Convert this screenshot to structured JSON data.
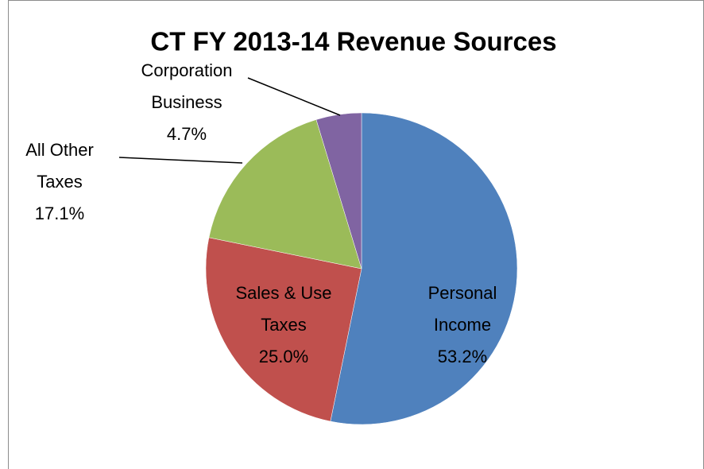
{
  "chart_data": {
    "type": "pie",
    "title": "CT FY 2013-14 Revenue Sources",
    "categories": [
      [
        "Personal",
        "Income"
      ],
      [
        "Sales & Use",
        "Taxes"
      ],
      [
        "All Other",
        "Taxes"
      ],
      [
        "Corporation",
        "Business"
      ]
    ],
    "values": [
      53.2,
      25.0,
      17.1,
      4.7
    ],
    "value_labels": [
      "53.2%",
      "25.0%",
      "17.1%",
      "4.7%"
    ],
    "colors": [
      "#4f81bd",
      "#c0504d",
      "#9bbb59",
      "#8064a2"
    ]
  }
}
